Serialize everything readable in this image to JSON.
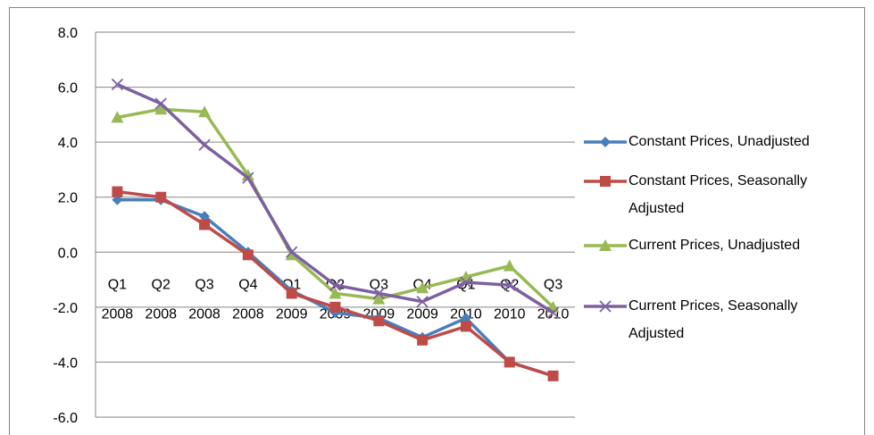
{
  "chart_data": {
    "type": "line",
    "categories": [
      "Q1 2008",
      "Q2 2008",
      "Q3 2008",
      "Q4 2008",
      "Q1 2009",
      "Q2 2009",
      "Q3 2009",
      "Q4 2009",
      "Q1 2010",
      "Q2 2010",
      "Q3 2010"
    ],
    "series": [
      {
        "name": "Constant Prices, Unadjusted",
        "color": "#4a7ebb",
        "marker": "diamond",
        "values": [
          1.9,
          1.9,
          1.3,
          0.0,
          -1.4,
          -2.2,
          -2.4,
          -3.1,
          -2.4,
          -4.0,
          -4.5
        ]
      },
      {
        "name": "Constant Prices, Seasonally Adjusted",
        "color": "#be4b48",
        "marker": "square",
        "values": [
          2.2,
          2.0,
          1.0,
          -0.1,
          -1.5,
          -2.0,
          -2.5,
          -3.2,
          -2.7,
          -4.0,
          -4.5
        ]
      },
      {
        "name": "Current Prices, Unadjusted",
        "color": "#98b954",
        "marker": "triangle",
        "values": [
          4.9,
          5.2,
          5.1,
          2.8,
          -0.1,
          -1.5,
          -1.7,
          -1.3,
          -0.9,
          -0.5,
          -2.0
        ]
      },
      {
        "name": "Current Prices, Seasonally Adjusted",
        "color": "#7d60a0",
        "marker": "x",
        "values": [
          6.1,
          5.4,
          3.9,
          2.7,
          0.0,
          -1.2,
          -1.5,
          -1.8,
          -1.1,
          -1.2,
          -2.2
        ]
      }
    ],
    "ylim": [
      -6,
      8
    ],
    "yticks": [
      {
        "value": -6,
        "label": "-6.0"
      },
      {
        "value": -4,
        "label": "-4.0"
      },
      {
        "value": -2,
        "label": "-2.0"
      },
      {
        "value": 0,
        "label": "0.0"
      },
      {
        "value": 2,
        "label": "2.0"
      },
      {
        "value": 4,
        "label": "4.0"
      },
      {
        "value": 6,
        "label": "6.0"
      },
      {
        "value": 8,
        "label": "8.0"
      }
    ],
    "grid": true,
    "legend": "right"
  }
}
